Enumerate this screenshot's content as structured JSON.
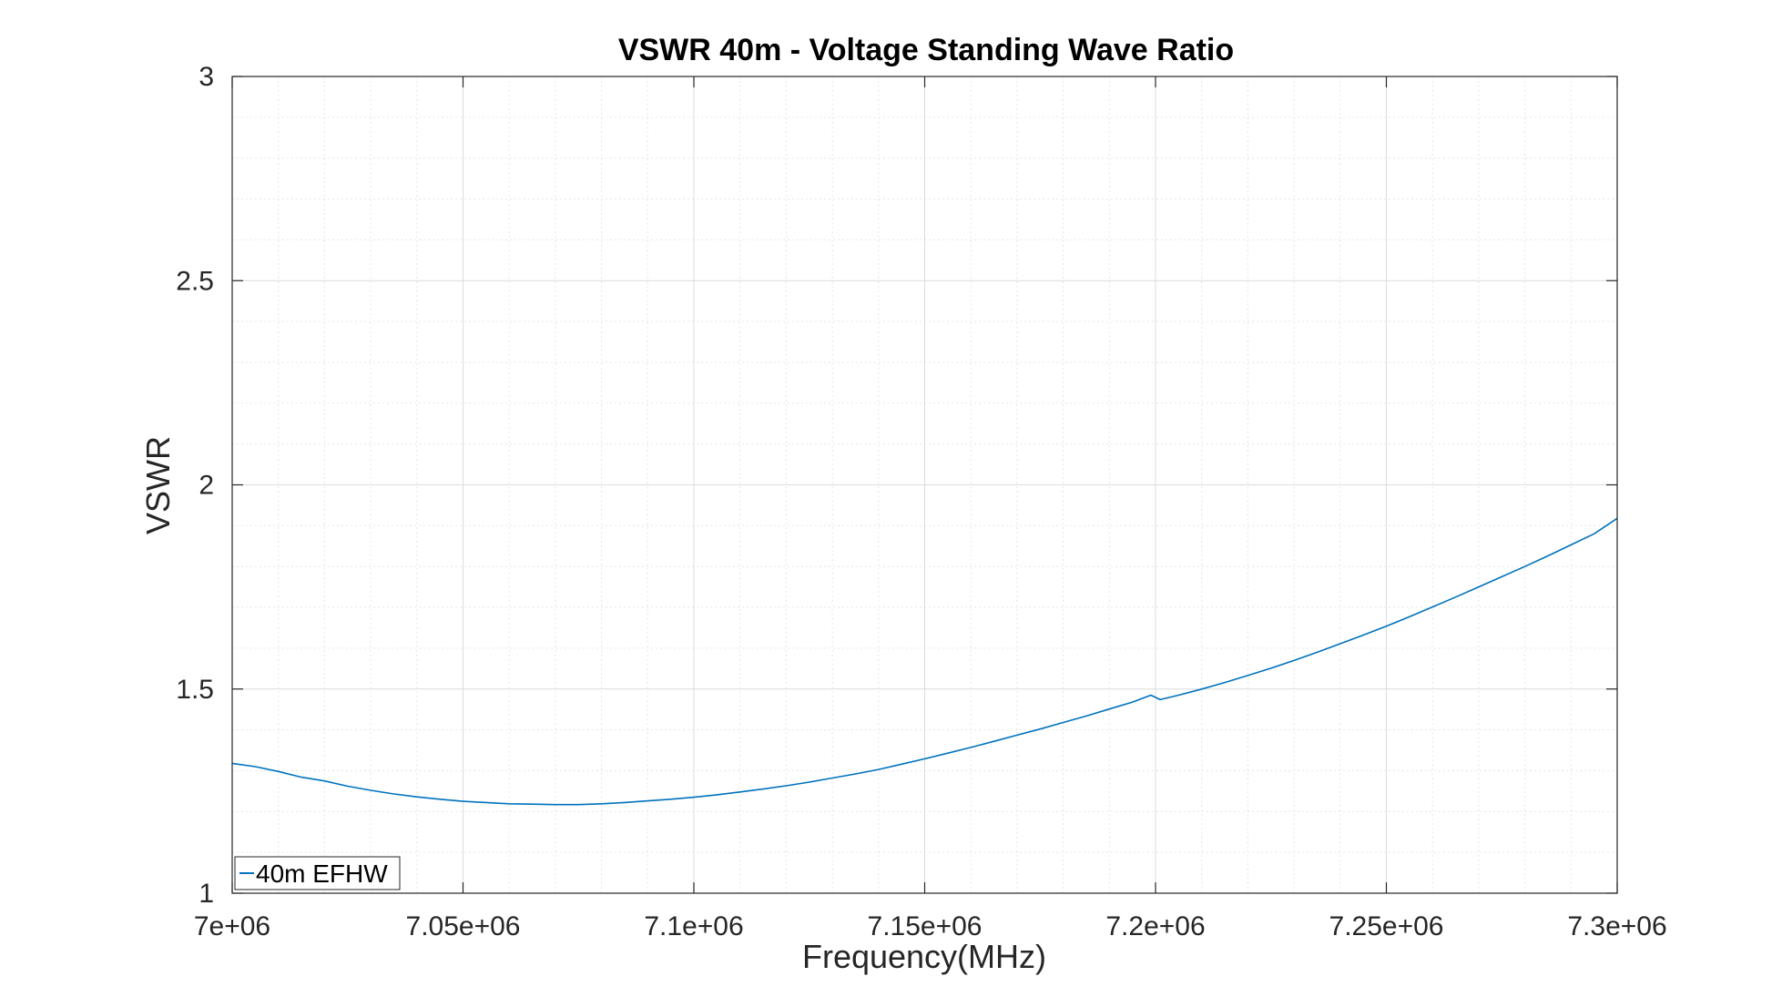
{
  "chart_data": {
    "type": "line",
    "title": "VSWR 40m - Voltage Standing Wave Ratio",
    "xlabel": "Frequency(MHz)",
    "ylabel": "VSWR",
    "xlim": [
      7000000,
      7300000
    ],
    "ylim": [
      1,
      3
    ],
    "x_ticks": [
      7000000,
      7050000,
      7100000,
      7150000,
      7200000,
      7250000,
      7300000
    ],
    "x_tick_labels": [
      "7e+06",
      "7.05e+06",
      "7.1e+06",
      "7.15e+06",
      "7.2e+06",
      "7.25e+06",
      "7.3e+06"
    ],
    "y_ticks": [
      1,
      1.5,
      2,
      2.5,
      3
    ],
    "y_tick_labels": [
      "1",
      "1.5",
      "2",
      "2.5",
      "3"
    ],
    "grid": true,
    "minor_grid": true,
    "legend_position": "bottom-left",
    "series": [
      {
        "name": "40m EFHW",
        "color": "#0072BD",
        "x": [
          7000000,
          7005000,
          7010000,
          7015000,
          7020000,
          7025000,
          7030000,
          7035000,
          7040000,
          7045000,
          7050000,
          7055000,
          7060000,
          7065000,
          7070000,
          7075000,
          7080000,
          7085000,
          7090000,
          7095000,
          7100000,
          7105000,
          7110000,
          7115000,
          7120000,
          7125000,
          7130000,
          7135000,
          7140000,
          7145000,
          7150000,
          7155000,
          7160000,
          7165000,
          7170000,
          7175000,
          7180000,
          7185000,
          7190000,
          7195000,
          7199000,
          7201000,
          7205000,
          7210000,
          7215000,
          7220000,
          7225000,
          7230000,
          7235000,
          7240000,
          7245000,
          7250000,
          7255000,
          7260000,
          7265000,
          7270000,
          7275000,
          7280000,
          7285000,
          7290000,
          7295000,
          7300000
        ],
        "values": [
          1.318,
          1.31,
          1.298,
          1.284,
          1.275,
          1.262,
          1.252,
          1.243,
          1.236,
          1.23,
          1.225,
          1.222,
          1.219,
          1.218,
          1.217,
          1.217,
          1.219,
          1.222,
          1.226,
          1.23,
          1.235,
          1.241,
          1.248,
          1.255,
          1.263,
          1.272,
          1.282,
          1.292,
          1.303,
          1.316,
          1.329,
          1.343,
          1.357,
          1.372,
          1.387,
          1.402,
          1.418,
          1.434,
          1.451,
          1.468,
          1.485,
          1.474,
          1.485,
          1.5,
          1.516,
          1.533,
          1.551,
          1.57,
          1.59,
          1.611,
          1.632,
          1.654,
          1.677,
          1.701,
          1.725,
          1.75,
          1.775,
          1.8,
          1.826,
          1.853,
          1.88,
          1.918
        ]
      }
    ]
  }
}
